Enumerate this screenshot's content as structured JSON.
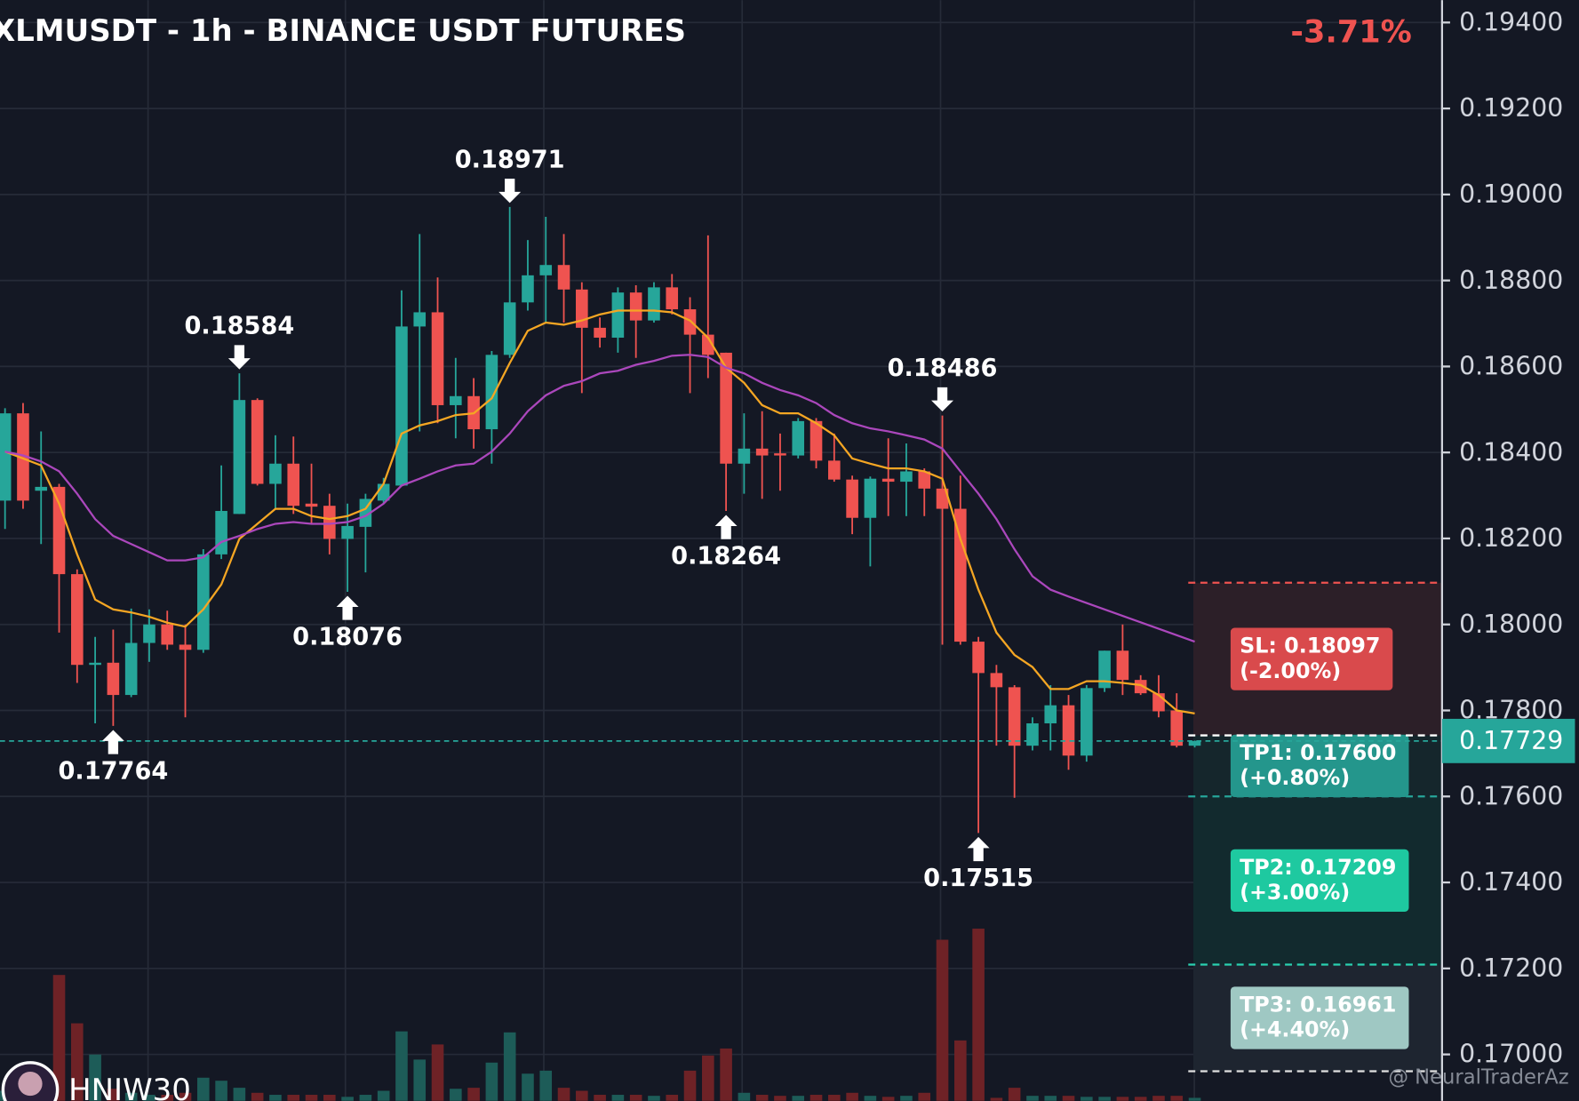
{
  "chart_data": {
    "type": "candlestick",
    "title": "XLMUSDT - 1h - BINANCE USDT FUTURES",
    "change": "-3.71%",
    "open": [
      0.18288,
      0.18491,
      0.18311,
      0.1832,
      0.18117,
      0.17906,
      0.17911,
      0.17836,
      0.17957,
      0.18,
      0.17953,
      0.17941,
      0.18163,
      0.18257,
      0.18522,
      0.18327,
      0.18374,
      0.18281,
      0.18276,
      0.18199,
      0.18227,
      0.18288,
      0.18323,
      0.18693,
      0.18726,
      0.1851,
      0.18531,
      0.18454,
      0.18627,
      0.18749,
      0.18812,
      0.18836,
      0.18779,
      0.1869,
      0.18667,
      0.18772,
      0.18707,
      0.18784,
      0.18733,
      0.18674,
      0.18632,
      0.18374,
      0.18409,
      0.18398,
      0.18393,
      0.18473,
      0.18381,
      0.18337,
      0.18248,
      0.18339,
      0.18332,
      0.18356,
      0.18316,
      0.18269,
      0.1796,
      0.17887,
      0.17854,
      0.17718,
      0.1777,
      0.17812,
      0.17695,
      0.17852,
      0.17939,
      0.17871,
      0.1784,
      0.178,
      0.17718
    ],
    "high": [
      0.18503,
      0.18515,
      0.18449,
      0.18327,
      0.18128,
      0.17971,
      0.17988,
      0.18037,
      0.18035,
      0.18032,
      0.18,
      0.18175,
      0.1837,
      0.18584,
      0.18526,
      0.1844,
      0.18437,
      0.18374,
      0.18304,
      0.18281,
      0.18304,
      0.18341,
      0.18777,
      0.18908,
      0.18807,
      0.1862,
      0.18573,
      0.18636,
      0.18971,
      0.18894,
      0.18948,
      0.18908,
      0.18796,
      0.18714,
      0.18784,
      0.18789,
      0.18796,
      0.18815,
      0.18761,
      0.18905,
      0.18632,
      0.18491,
      0.18496,
      0.18444,
      0.1848,
      0.1848,
      0.18444,
      0.18346,
      0.18344,
      0.18433,
      0.18421,
      0.18363,
      0.18486,
      0.18346,
      0.17971,
      0.17906,
      0.17859,
      0.17784,
      0.17859,
      0.17836,
      0.17859,
      0.17939,
      0.18,
      0.17882,
      0.17882,
      0.1784,
      0.1773
    ],
    "low": [
      0.18222,
      0.18269,
      0.18187,
      0.17981,
      0.17864,
      0.1777,
      0.17764,
      0.17831,
      0.17913,
      0.17941,
      0.17784,
      0.17934,
      0.18152,
      0.18257,
      0.18323,
      0.18269,
      0.18257,
      0.18234,
      0.18163,
      0.18076,
      0.18121,
      0.18281,
      0.18323,
      0.18449,
      0.18468,
      0.18433,
      0.18409,
      0.18374,
      0.1862,
      0.1873,
      0.18702,
      0.18702,
      0.18538,
      0.18644,
      0.18632,
      0.1862,
      0.18702,
      0.18721,
      0.18538,
      0.18573,
      0.18264,
      0.18304,
      0.18292,
      0.18311,
      0.18386,
      0.18363,
      0.18332,
      0.1821,
      0.18135,
      0.18252,
      0.18252,
      0.18252,
      0.17953,
      0.17953,
      0.17515,
      0.17718,
      0.17597,
      0.17707,
      0.17707,
      0.17662,
      0.17681,
      0.17843,
      0.17836,
      0.17836,
      0.17784,
      0.17714,
      0.17714
    ],
    "close": [
      0.18491,
      0.18288,
      0.1832,
      0.18117,
      0.17906,
      0.17911,
      0.17836,
      0.17957,
      0.18,
      0.17953,
      0.17941,
      0.18163,
      0.18264,
      0.18522,
      0.18327,
      0.18374,
      0.18276,
      0.18274,
      0.18199,
      0.18229,
      0.18292,
      0.18327,
      0.18693,
      0.18726,
      0.1851,
      0.18531,
      0.18454,
      0.18627,
      0.18749,
      0.18812,
      0.18836,
      0.18779,
      0.1869,
      0.18667,
      0.18772,
      0.18707,
      0.18784,
      0.18733,
      0.18674,
      0.18627,
      0.18374,
      0.18409,
      0.18393,
      0.18393,
      0.18473,
      0.18381,
      0.18337,
      0.18248,
      0.18339,
      0.18332,
      0.18356,
      0.18316,
      0.18269,
      0.1796,
      0.17887,
      0.17854,
      0.17718,
      0.1777,
      0.17812,
      0.17695,
      0.17852,
      0.17939,
      0.17871,
      0.1784,
      0.17798,
      0.17718,
      0.17729
    ],
    "volume": [
      10,
      10,
      8,
      125,
      77,
      46,
      12,
      8,
      6,
      6,
      8,
      23,
      20,
      13,
      8,
      6,
      6,
      6,
      6,
      4,
      6,
      10,
      69,
      41,
      56,
      12,
      13,
      38,
      68,
      27,
      30,
      13,
      10,
      6,
      6,
      6,
      5,
      6,
      30,
      45,
      52,
      8,
      6,
      5,
      5,
      6,
      6,
      8,
      5,
      4,
      5,
      8,
      160,
      60,
      171,
      3,
      13,
      5,
      5,
      5,
      4,
      4,
      4,
      4,
      5,
      5,
      3
    ],
    "up_color": "#26a69a",
    "down_color": "#ef5350",
    "up_volume_color": "#1d5c58",
    "down_volume_color": "#6e2226",
    "lines": [
      {
        "color": "#f5a623",
        "values": [
          0.18402,
          0.18386,
          0.1837,
          0.18281,
          0.18163,
          0.18058,
          0.18035,
          0.18028,
          0.18018,
          0.18004,
          0.17995,
          0.18035,
          0.18093,
          0.18199,
          0.18234,
          0.18269,
          0.18269,
          0.18252,
          0.18245,
          0.18252,
          0.18269,
          0.18327,
          0.18444,
          0.18463,
          0.18473,
          0.18487,
          0.18491,
          0.18526,
          0.18608,
          0.18683,
          0.18702,
          0.18697,
          0.18707,
          0.18721,
          0.1873,
          0.1873,
          0.1873,
          0.18726,
          0.18707,
          0.18667,
          0.18597,
          0.18562,
          0.1851,
          0.18491,
          0.18491,
          0.18468,
          0.1844,
          0.18386,
          0.18374,
          0.18363,
          0.18363,
          0.18356,
          0.18339,
          0.18199,
          0.18081,
          0.17981,
          0.17929,
          0.17901,
          0.1785,
          0.1785,
          0.17868,
          0.17868,
          0.17864,
          0.17859,
          0.17836,
          0.178,
          0.17793
        ]
      },
      {
        "color": "#ab47bc",
        "values": [
          0.18402,
          0.18393,
          0.18379,
          0.18356,
          0.18304,
          0.18245,
          0.18206,
          0.18187,
          0.18168,
          0.18149,
          0.18149,
          0.18156,
          0.18192,
          0.18206,
          0.18222,
          0.18234,
          0.18238,
          0.18234,
          0.18234,
          0.18238,
          0.18252,
          0.18281,
          0.18323,
          0.18339,
          0.18356,
          0.1837,
          0.18374,
          0.18402,
          0.18444,
          0.18496,
          0.18533,
          0.18555,
          0.18566,
          0.18584,
          0.1859,
          0.18604,
          0.18613,
          0.18625,
          0.18627,
          0.18622,
          0.18597,
          0.18584,
          0.18562,
          0.18545,
          0.18533,
          0.18515,
          0.18487,
          0.18468,
          0.18456,
          0.18449,
          0.1844,
          0.1843,
          0.18409,
          0.18356,
          0.18304,
          0.18245,
          0.18175,
          0.18112,
          0.18081,
          0.18065,
          0.1805,
          0.18035,
          0.1802,
          0.18005,
          0.1799,
          0.17975,
          0.1796
        ]
      }
    ],
    "pivots": [
      {
        "index": 6,
        "type": "low",
        "value": 0.17764
      },
      {
        "index": 13,
        "type": "high",
        "value": 0.18584
      },
      {
        "index": 19,
        "type": "low",
        "value": 0.18076
      },
      {
        "index": 28,
        "type": "high",
        "value": 0.18971
      },
      {
        "index": 40,
        "type": "low",
        "value": 0.18264
      },
      {
        "index": 52,
        "type": "high",
        "value": 0.18486
      },
      {
        "index": 54,
        "type": "low",
        "value": 0.17515
      }
    ],
    "entry": 0.17742,
    "levels": [
      {
        "label": "SL: 0.18097",
        "change": "(-2.00%)",
        "value": 0.18097,
        "color": "#ef5350",
        "box_color": "#d94a4c",
        "fill": "#2c1f28",
        "text_color": "#ffffff"
      },
      {
        "label": "TP1: 0.17600",
        "change": "(+0.80%)",
        "value": 0.176,
        "color": "#26a69a",
        "box_color": "#24968c",
        "fill": "#15262c",
        "text_color": "#ffffff"
      },
      {
        "label": "TP2: 0.17209",
        "change": "(+3.00%)",
        "value": 0.17209,
        "color": "#2ad1b0",
        "box_color": "#1ec9a0",
        "fill": "#122a2e",
        "text_color": "#ffffff"
      },
      {
        "label": "TP3: 0.16961",
        "change": "(+4.40%)",
        "value": 0.16961,
        "color": "#e0e0e0",
        "box_color": "#9fc8c3",
        "fill": "#1e2530",
        "text_color": "#ffffff"
      }
    ],
    "last_price": 0.17729,
    "ylim": [
      0.16892,
      0.19452
    ],
    "yticks": [
      {
        "value": 0.194,
        "label": "0.19400"
      },
      {
        "value": 0.192,
        "label": "0.19200"
      },
      {
        "value": 0.19,
        "label": "0.19000"
      },
      {
        "value": 0.188,
        "label": "0.18800"
      },
      {
        "value": 0.186,
        "label": "0.18600"
      },
      {
        "value": 0.184,
        "label": "0.18400"
      },
      {
        "value": 0.182,
        "label": "0.18200"
      },
      {
        "value": 0.18,
        "label": "0.18000"
      },
      {
        "value": 0.178,
        "label": "0.17800"
      },
      {
        "value": 0.176,
        "label": "0.17600"
      },
      {
        "value": 0.174,
        "label": "0.17400"
      },
      {
        "value": 0.172,
        "label": "0.17200"
      },
      {
        "value": 0.17,
        "label": "0.17000"
      }
    ],
    "grid": true,
    "author": "HNIW30",
    "watermark": "@ NeuralTraderAz"
  }
}
